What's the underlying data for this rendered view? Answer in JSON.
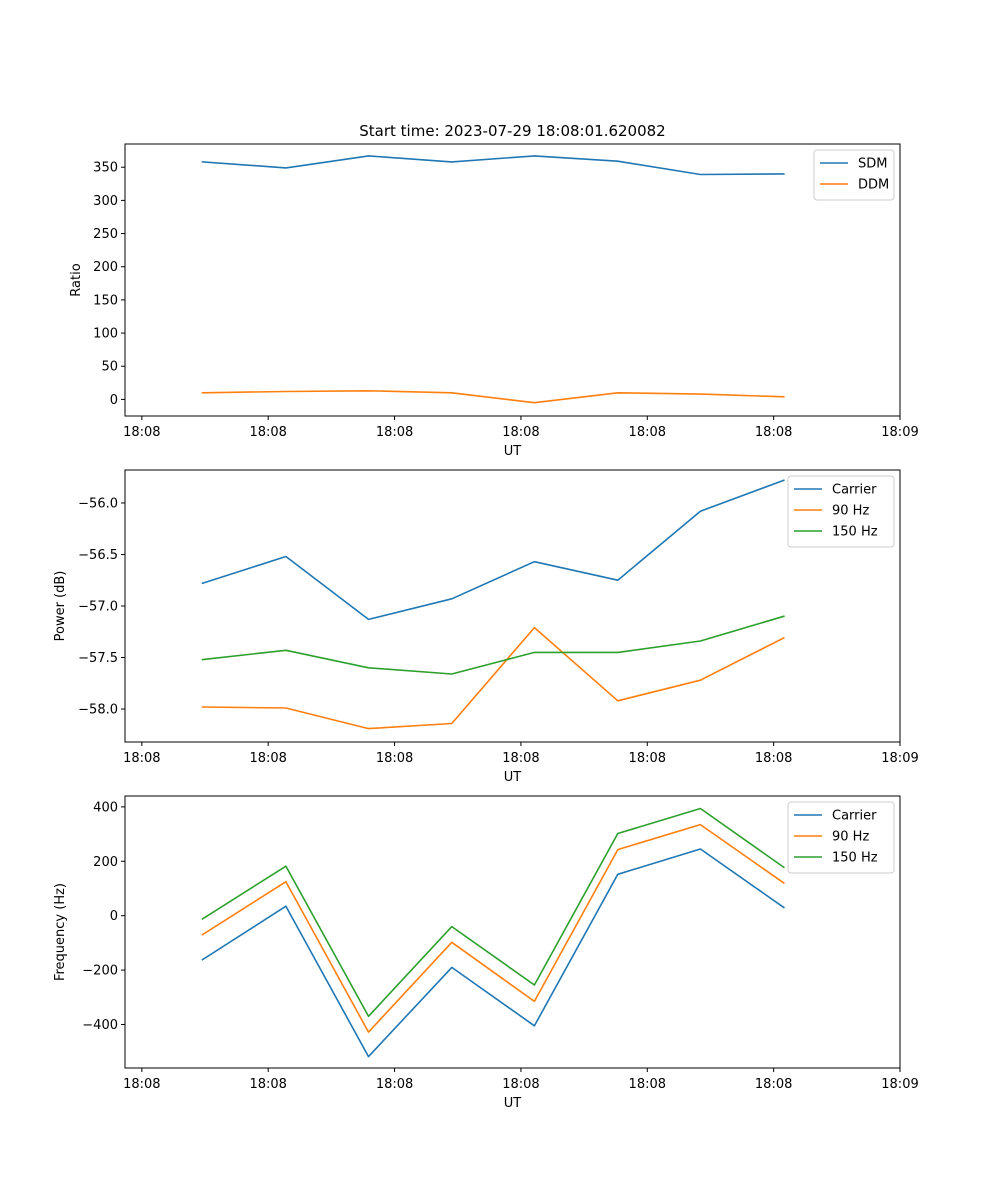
{
  "figure_title": "Start time: 2023-07-29 18:08:01.620082",
  "colors": {
    "c0": "#1f77b4",
    "c1": "#ff7f0e",
    "c2": "#2ca02c"
  },
  "chart_data": [
    {
      "type": "line",
      "title": "Start time: 2023-07-29 18:08:01.620082",
      "xlabel": "UT",
      "ylabel": "Ratio",
      "xlim": [
        -0.2,
        9.0
      ],
      "ylim": [
        -25,
        385
      ],
      "yticks": [
        0,
        50,
        100,
        150,
        200,
        250,
        300,
        350
      ],
      "ytick_labels": [
        "0",
        "50",
        "100",
        "150",
        "200",
        "250",
        "300",
        "350"
      ],
      "xticks": [
        0,
        1.5,
        3,
        4.5,
        6,
        7.5,
        9
      ],
      "xtick_labels": [
        "18:08",
        "18:08",
        "18:08",
        "18:08",
        "18:08",
        "18:08",
        "18:09"
      ],
      "x": [
        0.72,
        1.71,
        2.69,
        3.68,
        4.66,
        5.65,
        6.63,
        7.62
      ],
      "series": [
        {
          "name": "SDM",
          "color": "#1f77b4",
          "values": [
            358,
            349,
            367,
            358,
            367,
            359,
            339,
            340
          ]
        },
        {
          "name": "DDM",
          "color": "#ff7f0e",
          "values": [
            10,
            12,
            13,
            10,
            -5,
            10,
            8,
            4
          ]
        }
      ],
      "legend": "top-right",
      "grid": false
    },
    {
      "type": "line",
      "xlabel": "UT",
      "ylabel": "Power (dB)",
      "xlim": [
        -0.2,
        9.0
      ],
      "ylim": [
        -58.32,
        -55.68
      ],
      "yticks": [
        -58.0,
        -57.5,
        -57.0,
        -56.5,
        -56.0
      ],
      "ytick_labels": [
        "−58.0",
        "−57.5",
        "−57.0",
        "−56.5",
        "−56.0"
      ],
      "xticks": [
        0,
        1.5,
        3,
        4.5,
        6,
        7.5,
        9
      ],
      "xtick_labels": [
        "18:08",
        "18:08",
        "18:08",
        "18:08",
        "18:08",
        "18:08",
        "18:09"
      ],
      "x": [
        0.72,
        1.71,
        2.69,
        3.68,
        4.66,
        5.65,
        6.63,
        7.62
      ],
      "series": [
        {
          "name": "Carrier",
          "color": "#1f77b4",
          "values": [
            -56.78,
            -56.52,
            -57.13,
            -56.93,
            -56.57,
            -56.75,
            -56.08,
            -55.78
          ]
        },
        {
          "name": "90 Hz",
          "color": "#ff7f0e",
          "values": [
            -57.98,
            -57.99,
            -58.19,
            -58.14,
            -57.21,
            -57.92,
            -57.72,
            -57.31
          ]
        },
        {
          "name": "150 Hz",
          "color": "#2ca02c",
          "values": [
            -57.52,
            -57.43,
            -57.6,
            -57.66,
            -57.45,
            -57.45,
            -57.34,
            -57.1
          ]
        }
      ],
      "legend": "top-right",
      "grid": false
    },
    {
      "type": "line",
      "xlabel": "UT",
      "ylabel": "Frequency (Hz)",
      "xlim": [
        -0.2,
        9.0
      ],
      "ylim": [
        -560,
        440
      ],
      "yticks": [
        -400,
        -200,
        0,
        200,
        400
      ],
      "ytick_labels": [
        "−400",
        "−200",
        "0",
        "200",
        "400"
      ],
      "xticks": [
        0,
        1.5,
        3,
        4.5,
        6,
        7.5,
        9
      ],
      "xtick_labels": [
        "18:08",
        "18:08",
        "18:08",
        "18:08",
        "18:08",
        "18:08",
        "18:09"
      ],
      "x": [
        0.72,
        1.71,
        2.69,
        3.68,
        4.66,
        5.65,
        6.63,
        7.62
      ],
      "series": [
        {
          "name": "Carrier",
          "color": "#1f77b4",
          "values": [
            -162,
            35,
            -518,
            -190,
            -405,
            152,
            245,
            30
          ]
        },
        {
          "name": "90 Hz",
          "color": "#ff7f0e",
          "values": [
            -70,
            125,
            -428,
            -98,
            -315,
            243,
            335,
            120
          ]
        },
        {
          "name": "150 Hz",
          "color": "#2ca02c",
          "values": [
            -12,
            182,
            -370,
            -40,
            -255,
            302,
            394,
            178
          ]
        }
      ],
      "legend": "top-right",
      "grid": false
    }
  ]
}
